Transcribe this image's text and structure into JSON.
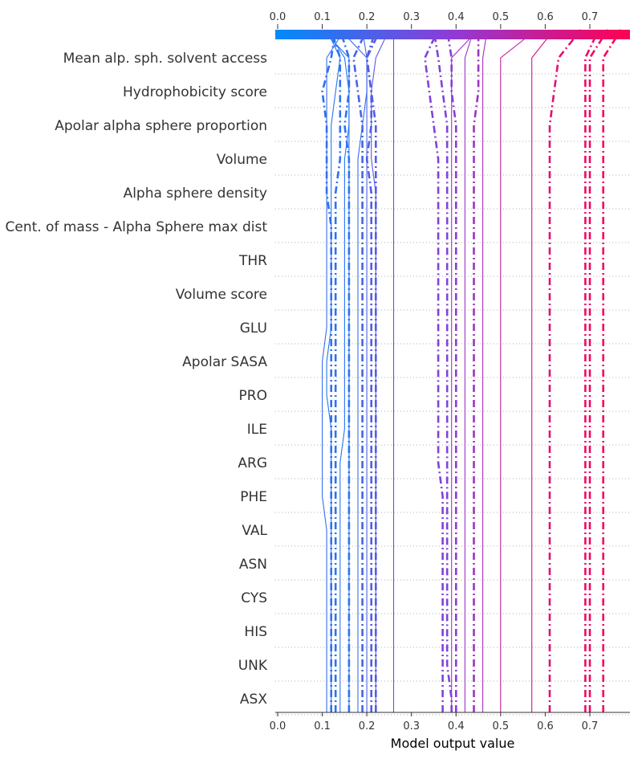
{
  "chart_data": {
    "type": "line",
    "title": "",
    "xlabel": "Model output value",
    "ylabel": "",
    "xlim": [
      0.0,
      0.79
    ],
    "xticks": [
      "0.0",
      "0.1",
      "0.2",
      "0.3",
      "0.4",
      "0.5",
      "0.6",
      "0.7"
    ],
    "colorbar": {
      "min": 0.0,
      "max": 0.79,
      "low_color": "#008bfb",
      "mid_color": "#8f3bd6",
      "high_color": "#ff0052"
    },
    "features": [
      "Mean alp. sph. solvent access",
      "Hydrophobicity score",
      "Apolar alpha sphere proportion",
      "Volume",
      "Alpha sphere density",
      "Cent. of mass - Alpha Sphere max dist",
      "THR",
      "Volume score",
      "GLU",
      "Apolar SASA",
      "PRO",
      "ILE",
      "ARG",
      "PHE",
      "VAL",
      "ASN",
      "CYS",
      "HIS",
      "UNK",
      "ASX"
    ],
    "base_value": 0.26,
    "highlighted_samples_note": "dash-dot lines mark misclassified samples",
    "series": [
      {
        "style": "solid",
        "values": [
          0.11,
          0.11,
          0.11,
          0.11,
          0.11,
          0.11,
          0.1,
          0.1,
          0.1,
          0.1,
          0.1,
          0.11,
          0.11,
          0.11,
          0.11,
          0.11,
          0.11,
          0.11,
          0.11,
          0.11,
          0.15
        ]
      },
      {
        "style": "solid",
        "values": [
          0.12,
          0.12,
          0.12,
          0.12,
          0.12,
          0.12,
          0.12,
          0.12,
          0.12,
          0.11,
          0.11,
          0.12,
          0.12,
          0.12,
          0.12,
          0.12,
          0.12,
          0.12,
          0.13,
          0.14,
          0.11
        ]
      },
      {
        "style": "dashdot",
        "values": [
          0.12,
          0.12,
          0.12,
          0.12,
          0.12,
          0.12,
          0.12,
          0.12,
          0.12,
          0.12,
          0.12,
          0.12,
          0.12,
          0.12,
          0.12,
          0.11,
          0.11,
          0.11,
          0.1,
          0.12,
          0.13
        ]
      },
      {
        "style": "dashdot",
        "values": [
          0.13,
          0.13,
          0.13,
          0.13,
          0.13,
          0.13,
          0.13,
          0.13,
          0.13,
          0.13,
          0.13,
          0.13,
          0.13,
          0.13,
          0.13,
          0.13,
          0.14,
          0.14,
          0.14,
          0.14,
          0.12
        ]
      },
      {
        "style": "solid",
        "values": [
          0.14,
          0.14,
          0.14,
          0.14,
          0.14,
          0.14,
          0.14,
          0.14,
          0.15,
          0.15,
          0.15,
          0.15,
          0.15,
          0.15,
          0.15,
          0.15,
          0.15,
          0.16,
          0.16,
          0.15,
          0.11
        ]
      },
      {
        "style": "dashdot",
        "values": [
          0.16,
          0.16,
          0.16,
          0.16,
          0.16,
          0.16,
          0.16,
          0.16,
          0.16,
          0.16,
          0.16,
          0.16,
          0.16,
          0.16,
          0.16,
          0.16,
          0.16,
          0.15,
          0.16,
          0.16,
          0.14
        ]
      },
      {
        "style": "solid",
        "values": [
          0.16,
          0.16,
          0.16,
          0.16,
          0.16,
          0.16,
          0.16,
          0.16,
          0.16,
          0.16,
          0.16,
          0.16,
          0.16,
          0.16,
          0.16,
          0.16,
          0.16,
          0.16,
          0.16,
          0.16,
          0.1
        ]
      },
      {
        "style": "solid",
        "values": [
          0.18,
          0.18,
          0.18,
          0.18,
          0.18,
          0.18,
          0.18,
          0.18,
          0.18,
          0.18,
          0.18,
          0.18,
          0.18,
          0.18,
          0.18,
          0.18,
          0.18,
          0.19,
          0.2,
          0.2,
          0.14
        ]
      },
      {
        "style": "dashdot",
        "values": [
          0.19,
          0.19,
          0.19,
          0.19,
          0.19,
          0.19,
          0.19,
          0.19,
          0.19,
          0.19,
          0.19,
          0.19,
          0.19,
          0.19,
          0.19,
          0.19,
          0.19,
          0.19,
          0.18,
          0.17,
          0.2
        ]
      },
      {
        "style": "solid",
        "values": [
          0.2,
          0.2,
          0.2,
          0.2,
          0.2,
          0.2,
          0.2,
          0.2,
          0.2,
          0.2,
          0.2,
          0.2,
          0.2,
          0.2,
          0.2,
          0.2,
          0.2,
          0.2,
          0.2,
          0.2,
          0.19
        ]
      },
      {
        "style": "dashdot",
        "values": [
          0.21,
          0.21,
          0.21,
          0.21,
          0.21,
          0.21,
          0.21,
          0.21,
          0.21,
          0.21,
          0.21,
          0.21,
          0.21,
          0.21,
          0.21,
          0.21,
          0.2,
          0.21,
          0.21,
          0.2,
          0.22
        ]
      },
      {
        "style": "solid",
        "values": [
          0.22,
          0.22,
          0.22,
          0.22,
          0.22,
          0.22,
          0.22,
          0.22,
          0.22,
          0.22,
          0.22,
          0.22,
          0.22,
          0.22,
          0.22,
          0.22,
          0.21,
          0.21,
          0.21,
          0.22,
          0.25
        ]
      },
      {
        "style": "dashdot",
        "values": [
          0.22,
          0.22,
          0.22,
          0.22,
          0.22,
          0.22,
          0.22,
          0.22,
          0.22,
          0.22,
          0.22,
          0.22,
          0.22,
          0.22,
          0.22,
          0.22,
          0.22,
          0.22,
          0.21,
          0.2,
          0.23
        ]
      },
      {
        "style": "solid",
        "values": [
          0.26,
          0.26,
          0.26,
          0.26,
          0.26,
          0.26,
          0.26,
          0.26,
          0.26,
          0.26,
          0.26,
          0.26,
          0.26,
          0.26,
          0.26,
          0.26,
          0.26,
          0.26,
          0.26,
          0.26,
          0.26
        ]
      },
      {
        "style": "dashdot",
        "values": [
          0.37,
          0.37,
          0.37,
          0.37,
          0.37,
          0.37,
          0.37,
          0.36,
          0.36,
          0.36,
          0.36,
          0.36,
          0.36,
          0.36,
          0.36,
          0.36,
          0.36,
          0.35,
          0.34,
          0.33,
          0.36
        ]
      },
      {
        "style": "dashdot",
        "values": [
          0.39,
          0.38,
          0.38,
          0.38,
          0.38,
          0.38,
          0.38,
          0.38,
          0.38,
          0.38,
          0.38,
          0.38,
          0.38,
          0.38,
          0.38,
          0.38,
          0.38,
          0.38,
          0.37,
          0.36,
          0.35
        ]
      },
      {
        "style": "solid",
        "values": [
          0.39,
          0.39,
          0.39,
          0.39,
          0.39,
          0.39,
          0.39,
          0.39,
          0.39,
          0.39,
          0.39,
          0.39,
          0.39,
          0.39,
          0.39,
          0.39,
          0.39,
          0.39,
          0.39,
          0.39,
          0.45
        ]
      },
      {
        "style": "dashdot",
        "values": [
          0.4,
          0.4,
          0.4,
          0.4,
          0.4,
          0.4,
          0.4,
          0.4,
          0.4,
          0.4,
          0.4,
          0.4,
          0.4,
          0.4,
          0.4,
          0.4,
          0.4,
          0.4,
          0.39,
          0.39,
          0.38
        ]
      },
      {
        "style": "solid",
        "values": [
          0.42,
          0.42,
          0.42,
          0.42,
          0.42,
          0.42,
          0.42,
          0.42,
          0.42,
          0.42,
          0.42,
          0.42,
          0.42,
          0.42,
          0.42,
          0.42,
          0.42,
          0.42,
          0.42,
          0.42,
          0.44
        ]
      },
      {
        "style": "dashdot",
        "values": [
          0.44,
          0.44,
          0.44,
          0.44,
          0.44,
          0.44,
          0.44,
          0.44,
          0.44,
          0.44,
          0.44,
          0.44,
          0.44,
          0.44,
          0.44,
          0.44,
          0.44,
          0.44,
          0.45,
          0.45,
          0.45
        ]
      },
      {
        "style": "solid",
        "values": [
          0.46,
          0.46,
          0.46,
          0.46,
          0.46,
          0.46,
          0.46,
          0.46,
          0.46,
          0.46,
          0.46,
          0.46,
          0.46,
          0.46,
          0.46,
          0.46,
          0.46,
          0.46,
          0.46,
          0.46,
          0.47
        ]
      },
      {
        "style": "solid",
        "values": [
          0.5,
          0.5,
          0.5,
          0.5,
          0.5,
          0.5,
          0.5,
          0.5,
          0.5,
          0.5,
          0.5,
          0.5,
          0.5,
          0.5,
          0.5,
          0.5,
          0.5,
          0.5,
          0.5,
          0.5,
          0.58
        ]
      },
      {
        "style": "solid",
        "values": [
          0.57,
          0.57,
          0.57,
          0.57,
          0.57,
          0.57,
          0.57,
          0.57,
          0.57,
          0.57,
          0.57,
          0.57,
          0.57,
          0.57,
          0.57,
          0.57,
          0.57,
          0.57,
          0.57,
          0.57,
          0.62
        ]
      },
      {
        "style": "dashdot",
        "values": [
          0.61,
          0.61,
          0.61,
          0.61,
          0.61,
          0.61,
          0.61,
          0.61,
          0.61,
          0.61,
          0.61,
          0.61,
          0.61,
          0.61,
          0.61,
          0.61,
          0.61,
          0.61,
          0.62,
          0.63,
          0.68
        ]
      },
      {
        "style": "dashdot",
        "values": [
          0.69,
          0.69,
          0.69,
          0.69,
          0.69,
          0.69,
          0.69,
          0.69,
          0.69,
          0.69,
          0.69,
          0.69,
          0.69,
          0.69,
          0.69,
          0.69,
          0.69,
          0.69,
          0.69,
          0.69,
          0.72
        ]
      },
      {
        "style": "dashdot",
        "values": [
          0.7,
          0.7,
          0.7,
          0.7,
          0.7,
          0.7,
          0.7,
          0.7,
          0.7,
          0.7,
          0.7,
          0.7,
          0.7,
          0.7,
          0.7,
          0.7,
          0.7,
          0.7,
          0.7,
          0.7,
          0.74
        ]
      },
      {
        "style": "dashdot",
        "values": [
          0.73,
          0.73,
          0.73,
          0.73,
          0.73,
          0.73,
          0.73,
          0.73,
          0.73,
          0.73,
          0.73,
          0.73,
          0.73,
          0.73,
          0.73,
          0.73,
          0.73,
          0.73,
          0.73,
          0.73,
          0.77
        ]
      }
    ]
  }
}
